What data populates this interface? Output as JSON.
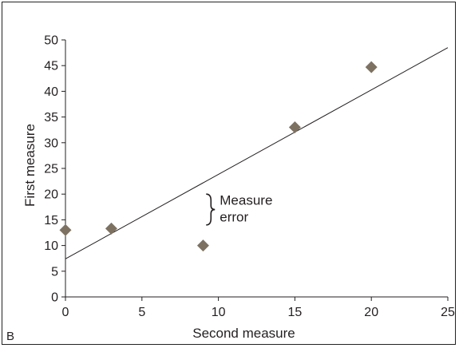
{
  "panel_label": "B",
  "chart_data": {
    "type": "scatter",
    "xlabel": "Second measure",
    "ylabel": "First measure",
    "xlim": [
      0,
      25
    ],
    "ylim": [
      0,
      50
    ],
    "xticks": [
      0,
      5,
      10,
      15,
      20,
      25
    ],
    "yticks": [
      0,
      5,
      10,
      15,
      20,
      25,
      30,
      35,
      40,
      45,
      50
    ],
    "grid": false,
    "points": [
      {
        "x": 0,
        "y": 13
      },
      {
        "x": 3,
        "y": 13.3
      },
      {
        "x": 9,
        "y": 10
      },
      {
        "x": 15,
        "y": 33
      },
      {
        "x": 20,
        "y": 44.7
      }
    ],
    "marker": "diamond",
    "marker_color": "#7d7262",
    "trend_line": {
      "x": [
        0,
        25
      ],
      "y": [
        7.4,
        48.5
      ]
    },
    "annotation": {
      "text_lines": [
        "Measure",
        "error"
      ],
      "x": 9.2,
      "y_range": [
        14,
        20
      ]
    }
  }
}
